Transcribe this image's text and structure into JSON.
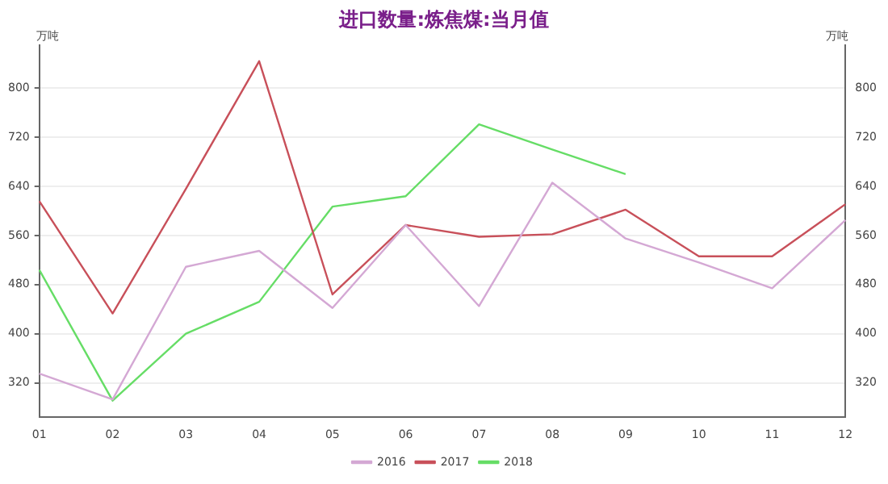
{
  "chart_data": {
    "type": "line",
    "title": "进口数量:炼焦煤:当月值",
    "ylabel": "万吨",
    "y2label": "万吨",
    "categories": [
      "01",
      "02",
      "03",
      "04",
      "05",
      "06",
      "07",
      "08",
      "09",
      "10",
      "11",
      "12"
    ],
    "series": [
      {
        "name": "2016",
        "color": "#d4a8d4",
        "values": [
          335,
          293,
          509,
          535,
          442,
          577,
          445,
          646,
          555,
          516,
          474,
          585
        ]
      },
      {
        "name": "2017",
        "color": "#c8505a",
        "values": [
          616,
          433,
          636,
          844,
          464,
          577,
          558,
          562,
          602,
          526,
          526,
          611
        ]
      },
      {
        "name": "2018",
        "color": "#66dd66",
        "values": [
          504,
          291,
          400,
          452,
          607,
          624,
          741,
          700,
          660,
          null,
          null,
          null
        ]
      }
    ],
    "ylim": [
      264,
      870
    ],
    "yticks": [
      320,
      400,
      480,
      560,
      640,
      720,
      800
    ],
    "y2lim": [
      264,
      870
    ],
    "y2ticks": [
      320,
      400,
      480,
      560,
      640,
      720,
      800
    ],
    "grid": "y",
    "legend": "bottom",
    "marker": "none",
    "line_style": "solid"
  }
}
